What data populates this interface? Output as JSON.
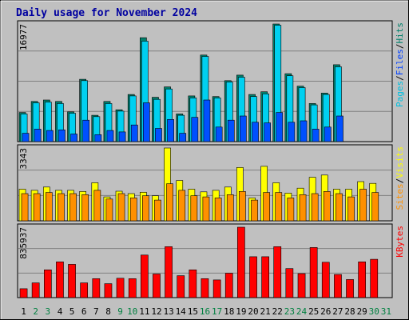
{
  "chart_data": {
    "type": "bar",
    "title": "Daily usage for November 2024",
    "days": [
      "1",
      "2",
      "3",
      "4",
      "5",
      "6",
      "7",
      "8",
      "9",
      "10",
      "11",
      "12",
      "13",
      "14",
      "15",
      "16",
      "17",
      "18",
      "19",
      "20",
      "21",
      "22",
      "23",
      "24",
      "25",
      "26",
      "27",
      "28",
      "29",
      "30",
      "31"
    ],
    "weekend_days": [
      2,
      3,
      9,
      10,
      16,
      17,
      23,
      24,
      30,
      31
    ],
    "panels": [
      {
        "name": "hits_files_pages",
        "max_label": "16977",
        "ymax": 16977,
        "side_label": [
          "Pages",
          "Files",
          "Hits"
        ],
        "side_colors": [
          "#00c0e0",
          "#0040ff",
          "#00806b"
        ],
        "series": [
          {
            "name": "Hits",
            "color": "#00806b",
            "values": [
              4200,
              5800,
              6000,
              5800,
              4300,
              9000,
              3800,
              5800,
              4600,
              6800,
              15000,
              6400,
              7900,
              4000,
              6600,
              12500,
              6500,
              8800,
              9600,
              6800,
              7200,
              16977,
              9800,
              8000,
              5500,
              7000,
              11100,
              0,
              0,
              0,
              0
            ]
          },
          {
            "name": "Files",
            "color": "#00d0f0",
            "values": [
              4000,
              5600,
              5700,
              5500,
              4100,
              8800,
              3600,
              5500,
              4400,
              6600,
              14500,
              6100,
              7600,
              3800,
              6300,
              12300,
              6300,
              8600,
              9300,
              6500,
              6900,
              16800,
              9500,
              7800,
              5300,
              6800,
              10800,
              0,
              0,
              0,
              0
            ]
          },
          {
            "name": "Pages",
            "color": "#0050ff",
            "values": [
              1200,
              1800,
              1600,
              1700,
              1100,
              3100,
              1000,
              1600,
              1400,
              2400,
              5600,
              1900,
              3200,
              1200,
              3500,
              6000,
              2100,
              3100,
              3700,
              2800,
              2700,
              4200,
              2800,
              3000,
              1800,
              2100,
              3700,
              0,
              0,
              0,
              0
            ]
          }
        ]
      },
      {
        "name": "visits_sites",
        "max_label": "3343",
        "ymax": 3343,
        "side_label": [
          "Sites",
          "Visits"
        ],
        "side_colors": [
          "#ff9000",
          "#ffff00"
        ],
        "series": [
          {
            "name": "Visits",
            "color": "#ffff00",
            "values": [
              1450,
              1400,
              1550,
              1400,
              1400,
              1350,
              1750,
              1100,
              1360,
              1250,
              1310,
              1150,
              3343,
              1850,
              1450,
              1330,
              1400,
              1550,
              2450,
              1050,
              2500,
              1750,
              1270,
              1500,
              2000,
              2100,
              1450,
              1450,
              1800,
              1720,
              0
            ]
          },
          {
            "name": "Sites",
            "color": "#ff9000",
            "values": [
              1250,
              1250,
              1300,
              1250,
              1250,
              1200,
              1400,
              1000,
              1250,
              1050,
              1150,
              950,
              1700,
              1400,
              1150,
              1100,
              1050,
              1200,
              1350,
              950,
              1300,
              1300,
              1050,
              1200,
              1250,
              1350,
              1250,
              1100,
              1450,
              1300,
              0
            ]
          }
        ]
      },
      {
        "name": "kbytes",
        "max_label": "835937",
        "ymax": 835937,
        "side_label": [
          "KBytes"
        ],
        "side_colors": [
          "#ff0000"
        ],
        "series": [
          {
            "name": "KBytes",
            "color": "#ff0000",
            "values": [
              105000,
              175000,
              330000,
              425000,
              395000,
              175000,
              225000,
              165000,
              230000,
              225000,
              505000,
              280000,
              605000,
              260000,
              330000,
              225000,
              210000,
              290000,
              835937,
              485000,
              485000,
              605000,
              345000,
              285000,
              595000,
              420000,
              275000,
              215000,
              425000,
              455000,
              0
            ]
          }
        ]
      }
    ]
  }
}
